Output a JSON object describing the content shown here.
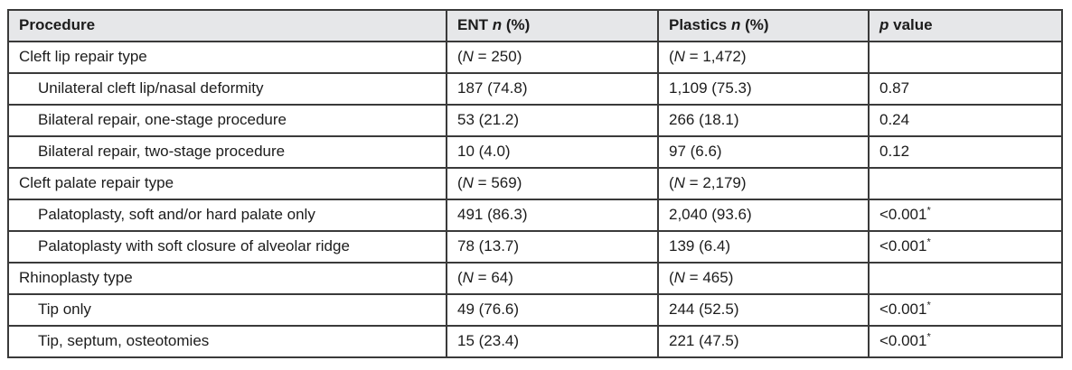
{
  "table": {
    "columns": [
      {
        "label": "Procedure"
      },
      {
        "label": "ENT n (%)"
      },
      {
        "label": "Plastics n (%)"
      },
      {
        "label": "p value"
      }
    ],
    "rows": [
      {
        "procedure": "Cleft lip repair type",
        "indent": false,
        "ent": "(N = 250)",
        "plastics": "(N = 1,472)",
        "p": ""
      },
      {
        "procedure": "Unilateral cleft lip/nasal deformity",
        "indent": true,
        "ent": "187 (74.8)",
        "plastics": "1,109 (75.3)",
        "p": "0.87"
      },
      {
        "procedure": "Bilateral repair, one-stage procedure",
        "indent": true,
        "ent": "53 (21.2)",
        "plastics": "266 (18.1)",
        "p": "0.24"
      },
      {
        "procedure": "Bilateral repair, two-stage procedure",
        "indent": true,
        "ent": "10 (4.0)",
        "plastics": "97 (6.6)",
        "p": "0.12"
      },
      {
        "procedure": "Cleft palate repair type",
        "indent": false,
        "ent": "(N = 569)",
        "plastics": "(N = 2,179)",
        "p": ""
      },
      {
        "procedure": "Palatoplasty, soft and/or hard palate only",
        "indent": true,
        "ent": "491 (86.3)",
        "plastics": "2,040 (93.6)",
        "p": "<0.001*"
      },
      {
        "procedure": "Palatoplasty with soft closure of alveolar ridge",
        "indent": true,
        "ent": "78 (13.7)",
        "plastics": "139 (6.4)",
        "p": "<0.001*"
      },
      {
        "procedure": "Rhinoplasty type",
        "indent": false,
        "ent": "(N = 64)",
        "plastics": "(N = 465)",
        "p": ""
      },
      {
        "procedure": "Tip only",
        "indent": true,
        "ent": "49 (76.6)",
        "plastics": "244 (52.5)",
        "p": "<0.001*"
      },
      {
        "procedure": "Tip, septum, osteotomies",
        "indent": true,
        "ent": "15 (23.4)",
        "plastics": "221 (47.5)",
        "p": "<0.001*"
      }
    ]
  },
  "chart_data": {
    "type": "table",
    "title": "",
    "columns": [
      "Procedure",
      "ENT n (%)",
      "Plastics n (%)",
      "p value"
    ],
    "rows": [
      [
        "Cleft lip repair type",
        "(N = 250)",
        "(N = 1,472)",
        ""
      ],
      [
        "Unilateral cleft lip/nasal deformity",
        "187 (74.8)",
        "1,109 (75.3)",
        "0.87"
      ],
      [
        "Bilateral repair, one-stage procedure",
        "53 (21.2)",
        "266 (18.1)",
        "0.24"
      ],
      [
        "Bilateral repair, two-stage procedure",
        "10 (4.0)",
        "97 (6.6)",
        "0.12"
      ],
      [
        "Cleft palate repair type",
        "(N = 569)",
        "(N = 2,179)",
        ""
      ],
      [
        "Palatoplasty, soft and/or hard palate only",
        "491 (86.3)",
        "2,040 (93.6)",
        "<0.001*"
      ],
      [
        "Palatoplasty with soft closure of alveolar ridge",
        "78 (13.7)",
        "139 (6.4)",
        "<0.001*"
      ],
      [
        "Rhinoplasty type",
        "(N = 64)",
        "(N = 465)",
        ""
      ],
      [
        "Tip only",
        "49 (76.6)",
        "244 (52.5)",
        "<0.001*"
      ],
      [
        "Tip, septum, osteotomies",
        "15 (23.4)",
        "221 (47.5)",
        "<0.001*"
      ]
    ]
  },
  "colors": {
    "header_bg": "#e6e7e9",
    "border": "#3a3a3a",
    "text": "#1c1c1c",
    "page_bg": "#ffffff"
  }
}
